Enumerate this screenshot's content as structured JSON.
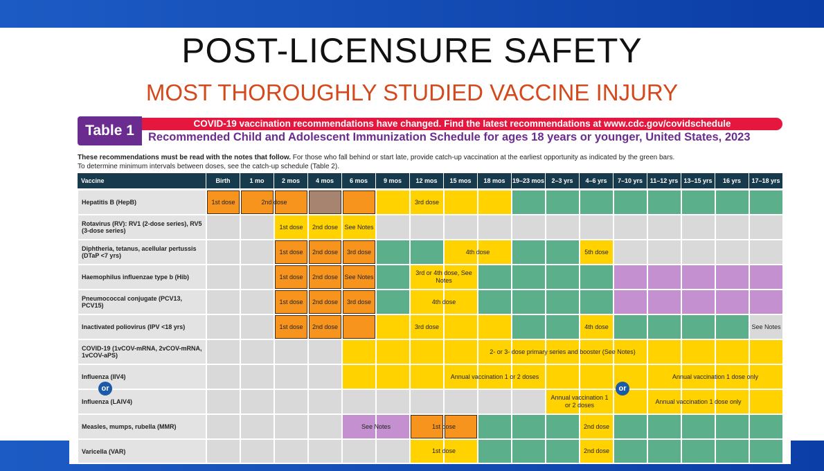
{
  "header": {
    "title": "POST-LICENSURE SAFETY",
    "subtitle": "MOST THOROUGHLY STUDIED VACCINE INJURY"
  },
  "schedule": {
    "table_label": "Table 1",
    "alert": "COVID-19 vaccination recommendations have changed. Find the latest recommendations at www.cdc.gov/covidschedule",
    "title": "Recommended Child and Adolescent Immunization Schedule for ages 18 years or younger, United States, 2023",
    "note_bold": "These recommendations must be read with the notes that follow.",
    "note": "For those who fall behind or start late, provide catch-up vaccination at the earliest opportunity as indicated by the green bars.",
    "note_2": "To determine minimum intervals between doses, see the catch-up schedule (Table 2).",
    "or": "or",
    "columns": [
      "Vaccine",
      "Birth",
      "1 mo",
      "2 mos",
      "4 mos",
      "6 mos",
      "9 mos",
      "12 mos",
      "15 mos",
      "18 mos",
      "19–23 mos",
      "2–3 yrs",
      "4–6 yrs",
      "7–10 yrs",
      "11–12 yrs",
      "13–15 yrs",
      "16 yrs",
      "17–18 yrs"
    ],
    "rows": [
      {
        "name": "Hepatitis B (HepB)",
        "labels": [
          "1st dose",
          "2nd dose",
          "3rd dose"
        ]
      },
      {
        "name": "Rotavirus (RV): RV1 (2-dose series), RV5 (3-dose series)",
        "labels": [
          "1st dose",
          "2nd dose",
          "See Notes"
        ]
      },
      {
        "name": "Diphtheria, tetanus, acellular pertussis (DTaP <7 yrs)",
        "labels": [
          "1st dose",
          "2nd dose",
          "3rd dose",
          "4th dose",
          "5th dose"
        ]
      },
      {
        "name": "Haemophilus influenzae type b (Hib)",
        "labels": [
          "1st dose",
          "2nd dose",
          "See Notes",
          "3rd or 4th dose, See Notes"
        ]
      },
      {
        "name": "Pneumococcal conjugate (PCV13, PCV15)",
        "labels": [
          "1st dose",
          "2nd dose",
          "3rd dose",
          "4th dose"
        ]
      },
      {
        "name": "Inactivated poliovirus (IPV <18 yrs)",
        "labels": [
          "1st dose",
          "2nd dose",
          "3rd dose",
          "4th dose",
          "See Notes"
        ]
      },
      {
        "name": "COVID-19 (1vCOV-mRNA, 2vCOV-mRNA, 1vCOV-aPS)",
        "labels": [
          "2- or 3- dose primary series and booster (See Notes)"
        ]
      },
      {
        "name": "Influenza (IIV4)",
        "labels": [
          "Annual vaccination 1 or 2 doses",
          "Annual vaccination 1 dose only"
        ]
      },
      {
        "name": "Influenza (LAIV4)",
        "labels": [
          "Annual vaccination 1 or 2 doses",
          "Annual vaccination 1 dose only"
        ]
      },
      {
        "name": "Measles, mumps, rubella (MMR)",
        "labels": [
          "See Notes",
          "1st dose",
          "2nd dose"
        ]
      },
      {
        "name": "Varicella (VAR)",
        "labels": [
          "1st dose",
          "2nd dose"
        ]
      }
    ]
  }
}
